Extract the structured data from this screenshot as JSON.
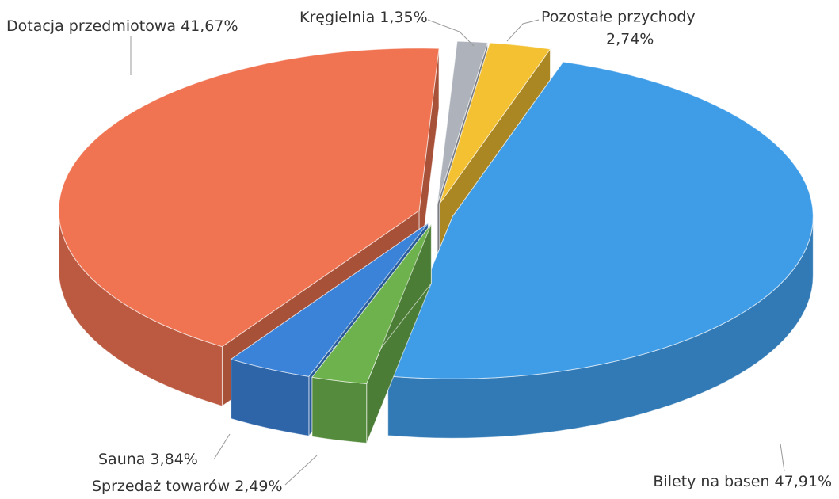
{
  "chart_data": {
    "type": "pie3d",
    "categories": [
      "Pozostałe przychody",
      "Bilety na basen",
      "Sprzedaż towarów",
      "Sauna",
      "Dotacja przedmiotowa",
      "Kręgielnia"
    ],
    "values": [
      2.74,
      47.91,
      2.49,
      3.84,
      41.67,
      1.35
    ],
    "value_labels": [
      "2,74%",
      "47,91%",
      "2,49%",
      "3,84%",
      "41,67%",
      "1,35%"
    ],
    "colors": [
      "#f3c132",
      "#3f9de8",
      "#6db24d",
      "#3b82d9",
      "#f07352",
      "#aeb3bb"
    ]
  }
}
